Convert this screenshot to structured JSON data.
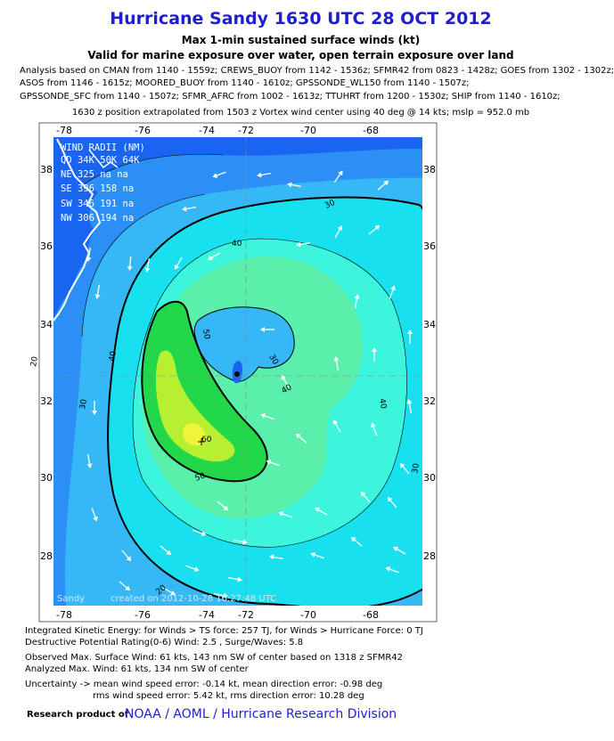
{
  "header": {
    "title": "Hurricane Sandy 1630 UTC 28 OCT 2012",
    "subtitle1": "Max 1-min sustained surface winds (kt)",
    "subtitle2": "Valid for marine exposure over water, open terrain exposure over land"
  },
  "analysis": {
    "lines": [
      "Analysis based on CMAN from 1140 - 1559z; CREWS_BUOY from 1142 - 1536z; SFMR42 from 0823 - 1428z; GOES from 1302 - 1302z;",
      "ASOS from 1146 - 1615z; MOORED_BUOY from 1140 - 1610z; GPSSONDE_WL150 from 1140 - 1507z;",
      "GPSSONDE_SFC from 1140 - 1507z; SFMR_AFRC from 1002 - 1613z; TTUHRT from 1200 - 1530z; SHIP from 1140 - 1610z;"
    ],
    "position_note": "1630 z position extrapolated from 1503 z Vortex wind center using 40 deg @ 14 kts; mslp = 952.0 mb"
  },
  "map": {
    "lon_ticks": [
      "-78",
      "-76",
      "-74",
      "-72",
      "-70",
      "-68"
    ],
    "lat_ticks": [
      "38",
      "36",
      "34",
      "32",
      "30",
      "28"
    ],
    "contour_labels": [
      "30",
      "40",
      "50",
      "60",
      "20",
      "30",
      "40",
      "50",
      "30",
      "40",
      "40",
      "30",
      "20"
    ],
    "watermark_left": "Sandy",
    "watermark_right": "created on 2012-10-28 16:27:48 UTC",
    "wind_radii": {
      "title": "WIND RADII (NM)",
      "header": "QD 34K 50K 64K",
      "rows": [
        "NE 325  na  na",
        "SE 396 158  na",
        "SW 346 191  na",
        "NW 306 194  na"
      ]
    },
    "colors": {
      "deep_blue": "#1a64f2",
      "blue": "#2c8ff5",
      "light_blue": "#35b8f5",
      "cyan": "#18e0ee",
      "aqua": "#3df5dc",
      "green_light": "#5aefab",
      "green": "#34e880",
      "green_bright": "#22d84a",
      "yellow_green": "#b6f030",
      "yellow": "#eef53a"
    }
  },
  "stats": {
    "ike": "Integrated Kinetic Energy: for Winds > TS force: 257 TJ, for Winds > Hurricane Force: 0 TJ",
    "destructive": "Destructive Potential Rating(0-6)  Wind: 2.5 , Surge/Waves: 5.8",
    "observed": "Observed Max. Surface Wind: 61 kts, 143 nm SW of center based on 1318 z SFMR42",
    "analyzed": "Analyzed Max. Wind: 61 kts, 134 nm  SW of center",
    "uncertainty1": "Uncertainty -> mean wind speed error:  -0.14 kt, mean direction error:  -0.98 deg",
    "uncertainty2": "rms wind speed error: 5.42 kt, rms direction error: 10.28 deg"
  },
  "footer": {
    "research": "Research product of",
    "org": "NOAA / AOML / Hurricane Research Division"
  }
}
